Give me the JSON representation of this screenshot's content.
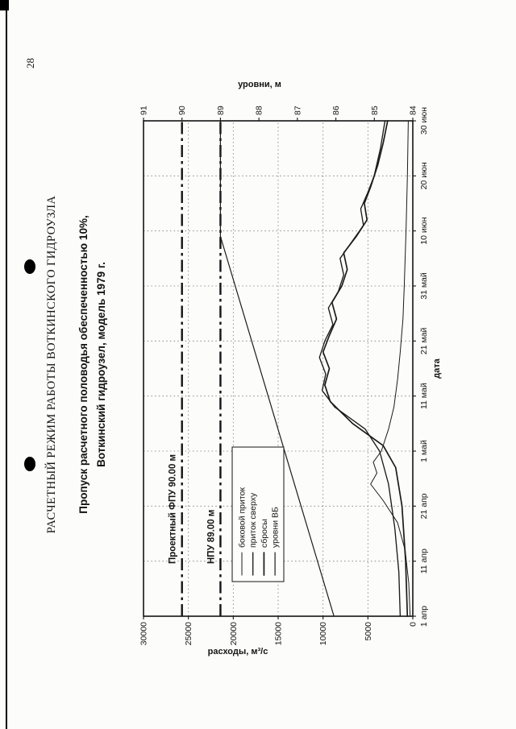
{
  "page": {
    "number": "28"
  },
  "header": {
    "title": "РАСЧЕТНЫЙ РЕЖИМ РАБОТЫ ВОТКИНСКОГО ГИДРОУЗЛА",
    "subtitle_line1": "Пропуск расчетного половодья обеспеченностью 10%,",
    "subtitle_line2": "Воткинский гидроузел, модель 1979 г."
  },
  "colors": {
    "ink": "#1b1b1b",
    "paper": "#fcfcfa"
  },
  "chart_data": {
    "type": "line",
    "title": "",
    "xlabel": "дата",
    "ylabel_left": "расходы, м³/с",
    "ylabel_right": "уровни, м",
    "x_tick_labels": [
      "1 апр",
      "11 апр",
      "21 апр",
      "1 май",
      "11 май",
      "21 май",
      "31 май",
      "10 июн",
      "20 июн",
      "30 июн"
    ],
    "x_tick_days": [
      0,
      10,
      20,
      30,
      40,
      50,
      60,
      70,
      80,
      90
    ],
    "x_range_days": [
      0,
      90
    ],
    "y_left_ticks": [
      0,
      5000,
      10000,
      15000,
      20000,
      25000,
      30000
    ],
    "y_left_range": [
      0,
      30000
    ],
    "y_right_ticks": [
      84,
      85,
      86,
      87,
      88,
      89,
      90,
      91
    ],
    "y_right_range": [
      84,
      91
    ],
    "grid": "dotted",
    "legend_position": "inside-left-center",
    "reference_lines": [
      {
        "label": "Проектный ФПУ 90.00 м",
        "axis": "right",
        "value": 90.0
      },
      {
        "label": "НПУ 89.00 м",
        "axis": "right",
        "value": 89.0
      }
    ],
    "series": [
      {
        "name": "боковой приток",
        "axis": "left",
        "points": [
          [
            0,
            300
          ],
          [
            6,
            450
          ],
          [
            12,
            850
          ],
          [
            17,
            1700
          ],
          [
            21,
            3300
          ],
          [
            24,
            4700
          ],
          [
            26,
            4000
          ],
          [
            28,
            4400
          ],
          [
            30,
            3500
          ],
          [
            34,
            2700
          ],
          [
            38,
            2100
          ],
          [
            43,
            1700
          ],
          [
            48,
            1400
          ],
          [
            54,
            1100
          ],
          [
            60,
            950
          ],
          [
            70,
            750
          ],
          [
            80,
            600
          ],
          [
            90,
            500
          ]
        ]
      },
      {
        "name": "приток сверху",
        "axis": "left",
        "points": [
          [
            0,
            1400
          ],
          [
            8,
            1550
          ],
          [
            16,
            2000
          ],
          [
            24,
            2700
          ],
          [
            30,
            3700
          ],
          [
            34,
            5300
          ],
          [
            38,
            8700
          ],
          [
            41,
            10100
          ],
          [
            44,
            9700
          ],
          [
            47,
            10400
          ],
          [
            50,
            9800
          ],
          [
            53,
            8900
          ],
          [
            56,
            9400
          ],
          [
            59,
            8300
          ],
          [
            62,
            7700
          ],
          [
            65,
            8100
          ],
          [
            68,
            6800
          ],
          [
            71,
            5500
          ],
          [
            74,
            5800
          ],
          [
            77,
            5000
          ],
          [
            80,
            4300
          ],
          [
            85,
            3600
          ],
          [
            90,
            3100
          ]
        ]
      },
      {
        "name": "сбросы",
        "axis": "left",
        "points": [
          [
            0,
            600
          ],
          [
            10,
            800
          ],
          [
            20,
            1200
          ],
          [
            27,
            1900
          ],
          [
            31,
            3300
          ],
          [
            35,
            6700
          ],
          [
            39,
            9200
          ],
          [
            42,
            9800
          ],
          [
            45,
            9300
          ],
          [
            48,
            10000
          ],
          [
            51,
            9300
          ],
          [
            54,
            8500
          ],
          [
            57,
            9000
          ],
          [
            60,
            7900
          ],
          [
            63,
            7300
          ],
          [
            66,
            7700
          ],
          [
            69,
            6300
          ],
          [
            72,
            5100
          ],
          [
            75,
            5400
          ],
          [
            78,
            4700
          ],
          [
            82,
            3900
          ],
          [
            86,
            3300
          ],
          [
            90,
            2800
          ]
        ]
      },
      {
        "name": "уровни ВБ",
        "axis": "right",
        "points": [
          [
            0,
            86.05
          ],
          [
            69,
            89.0
          ],
          [
            90,
            89.0
          ]
        ]
      }
    ]
  }
}
